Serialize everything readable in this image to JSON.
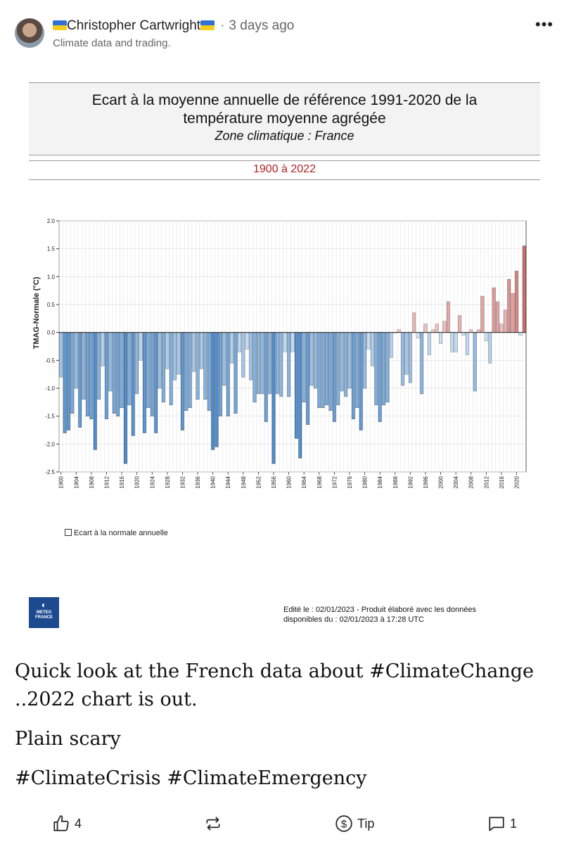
{
  "post": {
    "author": "Christopher Cartwright",
    "timestamp": "3 days ago",
    "author_subtitle": "Climate data and trading.",
    "body_lines": [
      "Quick look at the French data about #ClimateChange ..2022 chart is out.",
      "Plain scary",
      "#ClimateCrisis #ClimateEmergency"
    ]
  },
  "figure": {
    "title_line1": "Ecart à la moyenne annuelle de référence 1991-2020  de la",
    "title_line2": "température moyenne  agrégée",
    "zone": "Zone climatique : France",
    "range": "1900 à 2022",
    "legend": "Ecart à la normale annuelle",
    "edit_line1": "Edité le : 02/01/2023 - Produit élaboré avec les données",
    "edit_line2": "disponibles du : 02/01/2023 à 17:28 UTC",
    "logo_line1": "METEO",
    "logo_line2": "FRANCE"
  },
  "chart_data": {
    "type": "bar",
    "ylabel": "TMAG-Normale (°C)",
    "ylim": [
      -2.5,
      2.0
    ],
    "yticks": [
      "2.0",
      "1.5",
      "1.0",
      "0.5",
      "0.0",
      "-0.5",
      "-1.0",
      "-1.5",
      "-2.0",
      "-2.5"
    ],
    "x_start": 1900,
    "x_end": 2022,
    "x_tick_step": 4,
    "grid": true,
    "colors": {
      "negative": "#4a90d9",
      "positive": "#d05050"
    },
    "values": [
      -0.8,
      -1.8,
      -1.75,
      -1.45,
      -1.0,
      -1.7,
      -1.2,
      -1.5,
      -1.55,
      -2.1,
      -1.2,
      -0.6,
      -1.55,
      -1.05,
      -1.45,
      -1.5,
      -1.35,
      -2.35,
      -1.3,
      -1.85,
      -1.1,
      -0.5,
      -1.8,
      -1.35,
      -1.5,
      -1.8,
      -1.0,
      -1.25,
      -0.65,
      -1.3,
      -0.85,
      -0.75,
      -1.75,
      -1.4,
      -1.35,
      -0.7,
      -1.2,
      -0.65,
      -1.2,
      -1.4,
      -2.1,
      -2.05,
      -1.5,
      -0.95,
      -1.5,
      -0.55,
      -1.45,
      -0.35,
      -0.8,
      -0.3,
      -0.85,
      -1.25,
      -1.1,
      -1.1,
      -1.6,
      -1.1,
      -2.35,
      -1.1,
      -1.15,
      -0.35,
      -1.15,
      -0.35,
      -1.9,
      -2.25,
      -1.25,
      -1.65,
      -0.95,
      -1.0,
      -1.35,
      -1.35,
      -1.3,
      -1.4,
      -1.6,
      -1.3,
      -1.05,
      -1.15,
      -1.0,
      -1.55,
      -1.35,
      -1.75,
      -1.0,
      -0.3,
      -0.6,
      -1.3,
      -1.6,
      -1.3,
      -1.25,
      -0.45,
      0.0,
      0.05,
      -0.95,
      -0.75,
      -0.9,
      0.35,
      -0.1,
      -1.1,
      0.15,
      -0.4,
      0.05,
      0.15,
      -0.2,
      0.2,
      0.55,
      -0.35,
      -0.35,
      0.3,
      -0.05,
      -0.4,
      0.05,
      -1.05,
      0.05,
      0.65,
      -0.15,
      -0.55,
      0.8,
      0.55,
      0.15,
      0.4,
      0.95,
      0.7,
      1.1,
      -0.05,
      1.55
    ]
  },
  "actions": {
    "like_count": "4",
    "tip_label": "Tip",
    "comment_count": "1"
  },
  "icons": {
    "like": "thumbs-up-icon",
    "repost": "repost-icon",
    "tip": "dollar-coin-icon",
    "comment": "comment-icon",
    "more": "more-icon"
  }
}
